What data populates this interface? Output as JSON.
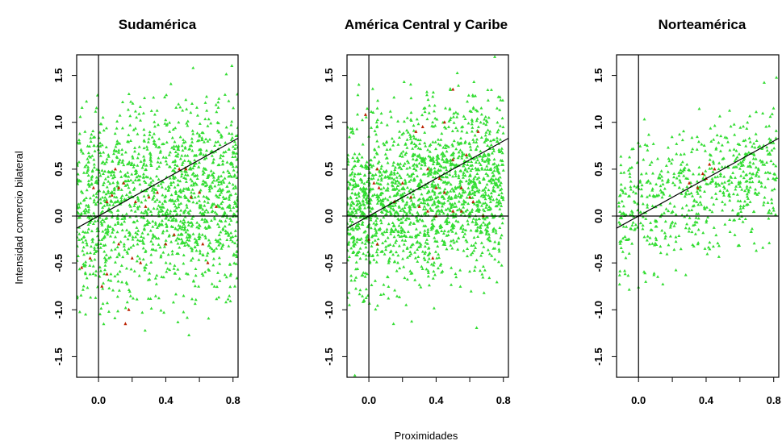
{
  "figure": {
    "xlabel": "Proximidades",
    "ylabel": "Intensidad comercio bilateral"
  },
  "colors": {
    "background": "#ffffff",
    "points_main": "#33dd33",
    "points_highlight": "#bb2200",
    "lines": "#000000"
  },
  "chart_data": [
    {
      "type": "scatter",
      "title": "Sudamérica",
      "xlim": [
        -0.13,
        0.83
      ],
      "ylim": [
        -1.72,
        1.72
      ],
      "xticks": [
        "0.0",
        "0.4",
        "0.8"
      ],
      "yticks": [
        "-1.5",
        "-1.0",
        "-0.5",
        "0.0",
        "0.5",
        "1.0",
        "1.5"
      ],
      "reference_lines": {
        "vertical_x": 0,
        "horizontal_y": 0,
        "fit_line": {
          "intercept": 0,
          "slope": 1.0
        }
      },
      "green_cloud": {
        "count": 1500,
        "x_range": [
          -0.13,
          0.83
        ],
        "y_mean_intercept": 0.1,
        "y_mean_slope": 0.15,
        "y_sd": 0.5
      },
      "red_points": [
        [
          -0.1,
          -0.55
        ],
        [
          -0.05,
          -0.45
        ],
        [
          0.02,
          -0.75
        ],
        [
          0.05,
          -0.62
        ],
        [
          0.1,
          0.5
        ],
        [
          0.12,
          0.3
        ],
        [
          0.15,
          0.35
        ],
        [
          0.08,
          0.22
        ],
        [
          0.2,
          -0.45
        ],
        [
          0.25,
          -0.5
        ],
        [
          0.18,
          -1.0
        ],
        [
          0.16,
          -1.15
        ],
        [
          0.3,
          0.2
        ],
        [
          0.35,
          0.25
        ],
        [
          0.48,
          0.5
        ],
        [
          0.52,
          0.5
        ],
        [
          0.55,
          0.2
        ],
        [
          0.6,
          0.25
        ],
        [
          0.62,
          -0.3
        ],
        [
          0.65,
          -0.5
        ],
        [
          0.05,
          0.15
        ],
        [
          -0.03,
          0.3
        ],
        [
          0.4,
          -0.3
        ],
        [
          0.7,
          0.1
        ],
        [
          0.28,
          0.1
        ],
        [
          0.45,
          -0.2
        ],
        [
          0.12,
          -0.3
        ],
        [
          0.22,
          0.15
        ]
      ]
    },
    {
      "type": "scatter",
      "title": "América Central y Caribe",
      "xlim": [
        -0.13,
        0.83
      ],
      "ylim": [
        -1.72,
        1.72
      ],
      "xticks": [
        "0.0",
        "0.4",
        "0.8"
      ],
      "yticks": [
        "-1.5",
        "-1.0",
        "-0.5",
        "0.0",
        "0.5",
        "1.0",
        "1.5"
      ],
      "reference_lines": {
        "vertical_x": 0,
        "horizontal_y": 0,
        "fit_line": {
          "intercept": 0,
          "slope": 1.0
        }
      },
      "green_cloud": {
        "count": 1800,
        "x_range": [
          -0.13,
          0.8
        ],
        "y_mean_intercept": 0.1,
        "y_mean_slope": 0.35,
        "y_sd": 0.45
      },
      "red_points": [
        [
          -0.02,
          1.08
        ],
        [
          0.05,
          0.5
        ],
        [
          0.03,
          0.35
        ],
        [
          0.06,
          0.3
        ],
        [
          0.0,
          -0.25
        ],
        [
          0.05,
          -0.3
        ],
        [
          0.28,
          0.9
        ],
        [
          0.32,
          0.95
        ],
        [
          0.45,
          1.0
        ],
        [
          0.5,
          1.35
        ],
        [
          0.35,
          0.5
        ],
        [
          0.4,
          0.3
        ],
        [
          0.42,
          0.4
        ],
        [
          0.45,
          0.25
        ],
        [
          0.5,
          0.6
        ],
        [
          0.55,
          0.3
        ],
        [
          0.6,
          0.2
        ],
        [
          0.62,
          0.15
        ],
        [
          0.3,
          0.1
        ],
        [
          0.35,
          0.05
        ],
        [
          0.2,
          0.35
        ],
        [
          0.5,
          0.05
        ],
        [
          0.55,
          0.05
        ],
        [
          0.68,
          0.0
        ],
        [
          0.25,
          0.2
        ],
        [
          0.4,
          0.0
        ],
        [
          0.65,
          0.9
        ],
        [
          0.58,
          0.65
        ],
        [
          0.38,
          -0.45
        ],
        [
          0.15,
          0.15
        ]
      ]
    },
    {
      "type": "scatter",
      "title": "Norteamérica",
      "xlim": [
        -0.13,
        0.83
      ],
      "ylim": [
        -1.72,
        1.72
      ],
      "xticks": [
        "0.0",
        "0.4",
        "0.8"
      ],
      "yticks": [
        "-1.5",
        "-1.0",
        "-0.5",
        "0.0",
        "0.5",
        "1.0",
        "1.5"
      ],
      "reference_lines": {
        "vertical_x": 0,
        "horizontal_y": 0,
        "fit_line": {
          "intercept": 0,
          "slope": 1.0
        }
      },
      "green_cloud": {
        "count": 650,
        "x_range": [
          -0.12,
          0.82
        ],
        "y_mean_intercept": 0.1,
        "y_mean_slope": 0.5,
        "y_sd": 0.35
      },
      "red_points": [
        [
          0.3,
          0.35
        ],
        [
          0.35,
          0.3
        ],
        [
          0.4,
          0.4
        ],
        [
          0.45,
          0.5
        ],
        [
          0.38,
          0.45
        ],
        [
          0.42,
          0.55
        ]
      ]
    }
  ]
}
